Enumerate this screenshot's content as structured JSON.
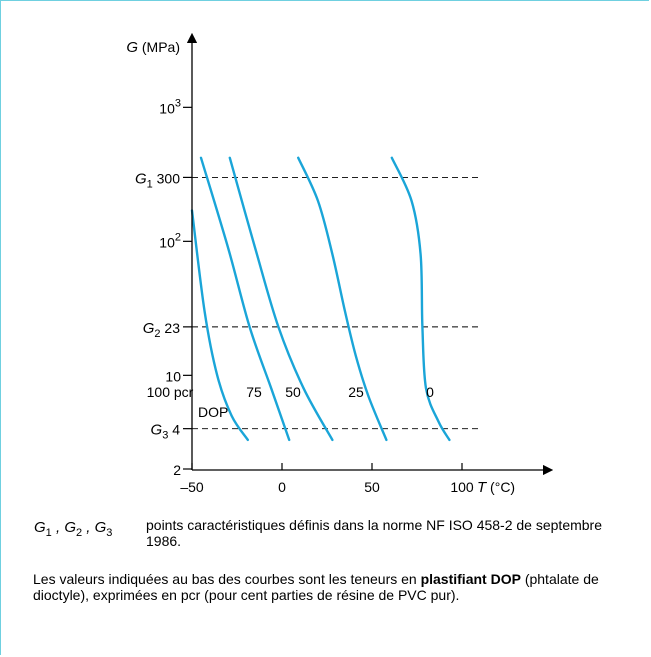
{
  "chart_data": {
    "type": "line",
    "xlabel_var": "T",
    "xlabel_unit": "(°C)",
    "ylabel_var": "G",
    "ylabel_unit": "(MPa)",
    "y_scale": "log",
    "xlim": [
      -50,
      115
    ],
    "ylim": [
      2,
      1500
    ],
    "x_ticks": [
      {
        "value": -50,
        "label": "–50"
      },
      {
        "value": 0,
        "label": "0"
      },
      {
        "value": 50,
        "label": "50"
      },
      {
        "value": 100,
        "label": "100"
      }
    ],
    "y_ticks": [
      {
        "value": 2,
        "label": "2"
      },
      {
        "value": 10,
        "label": "10"
      },
      {
        "value": 100,
        "label": "10",
        "sup": "2"
      },
      {
        "value": 1000,
        "label": "10",
        "sup": "3"
      }
    ],
    "reference_lines": [
      {
        "name": "G",
        "sub": "1",
        "value": 300,
        "value_label": "300"
      },
      {
        "name": "G",
        "sub": "2",
        "value": 23,
        "value_label": "23"
      },
      {
        "name": "G",
        "sub": "3",
        "value": 4,
        "value_label": "4"
      }
    ],
    "series": [
      {
        "name": "100 pcr DOP",
        "label": "100 pcr",
        "sublabel": "DOP",
        "points": [
          [
            -50,
            170
          ],
          [
            -43,
            30
          ],
          [
            -36,
            10
          ],
          [
            -28,
            5
          ],
          [
            -19,
            3.3
          ]
        ]
      },
      {
        "name": "75",
        "label": "75",
        "points": [
          [
            -45,
            420
          ],
          [
            -30,
            90
          ],
          [
            -18,
            23
          ],
          [
            -6,
            8
          ],
          [
            4,
            3.3
          ]
        ]
      },
      {
        "name": "50",
        "label": "50",
        "points": [
          [
            -29,
            420
          ],
          [
            -15,
            90
          ],
          [
            -2,
            23
          ],
          [
            12,
            8
          ],
          [
            28,
            3.3
          ]
        ]
      },
      {
        "name": "25",
        "label": "25",
        "points": [
          [
            9,
            420
          ],
          [
            20,
            200
          ],
          [
            28,
            80
          ],
          [
            35,
            30
          ],
          [
            41,
            14
          ],
          [
            48,
            7
          ],
          [
            58,
            3.3
          ]
        ]
      },
      {
        "name": "0",
        "label": "0",
        "points": [
          [
            61,
            420
          ],
          [
            72,
            200
          ],
          [
            77,
            80
          ],
          [
            78,
            23
          ],
          [
            80,
            8
          ],
          [
            87,
            4.5
          ],
          [
            93,
            3.3
          ]
        ]
      }
    ],
    "line_color": "#1aa5d8"
  },
  "legend": {
    "symbols": [
      {
        "name": "G",
        "sub": "1"
      },
      {
        "name": "G",
        "sub": "2"
      },
      {
        "name": "G",
        "sub": "3"
      }
    ],
    "description": "points caractéristiques définis dans la norme NF ISO 458-2 de septembre 1986."
  },
  "footnote": {
    "part1": "Les valeurs indiquées au bas des courbes sont les teneurs en ",
    "bold": "plastifiant DOP",
    "part2": " (phtalate de dioctyle), exprimées en pcr (pour cent parties de résine de PVC pur)."
  }
}
